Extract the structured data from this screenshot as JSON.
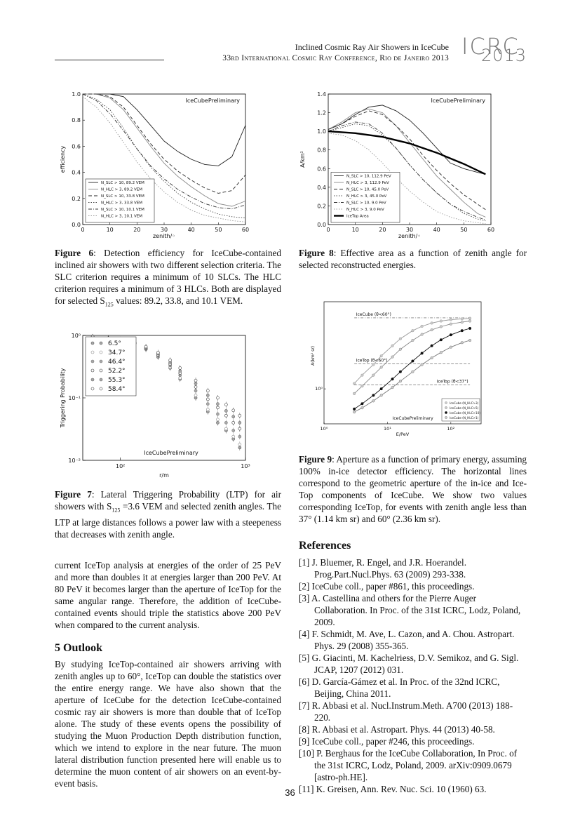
{
  "header": {
    "title": "Inclined Cosmic Ray Air Showers in IceCube",
    "conference": "33rd International Cosmic Ray Conference, Rio de Janeiro 2013",
    "logo_top": "ICRC",
    "logo_bottom": "2013"
  },
  "fig6": {
    "caption_label": "Figure 6",
    "caption": ": Detection efficiency for IceCube-contained inclined air showers with two different selection criteria. The SLC criterion requires a minimum of 10 SLCs. The HLC criterion requires a minimum of 3 HLCs. Both are displayed for selected S",
    "caption_sub": "125",
    "caption_end": " values: 89.2, 33.8, and 10.1 VEM."
  },
  "fig7": {
    "caption_label": "Figure 7",
    "caption": ": Lateral Triggering Probability (LTP) for air showers with S",
    "caption_sub": "125",
    "caption_end": " =3.6 VEM and selected zenith angles. The LTP at large distances follows a power law with a steepeness that decreases with zenith angle."
  },
  "fig8": {
    "caption_label": "Figure 8",
    "caption": ": Effective area as a function of zenith angle for selected reconstructed energies."
  },
  "fig9": {
    "caption_label": "Figure 9",
    "caption": ": Aperture as a function of primary energy, assuming 100% in-ice detector efficiency. The horizontal lines correspond to the geometric aperture of the in-ice and Ice-Top components of IceCube. We show two values corresponding IceTop, for events with zenith angle less than 37° (1.14 km sr) and 60° (2.36 km sr)."
  },
  "body_para": "current IceTop analysis at energies of the order of 25 PeV and more than doubles it at energies larger than 200 PeV. At 80 PeV it becomes larger than the aperture of IceTop for the same angular range. Therefore, the addition of IceCube-contained events should triple the statistics above 200 PeV when compared to the current analysis.",
  "outlook": {
    "heading": "5   Outlook",
    "text": "By studying IceTop-contained air showers arriving with zenith angles up to 60°, IceTop can double the statistics over the entire energy range. We have also shown that the aperture of IceCube for the detection IceCube-contained cosmic ray air showers is more than double that of IceTop alone. The study of these events opens the possibility of studying the Muon Production Depth distribution function, which we intend to explore in the near future. The muon lateral distribution function presented here will enable us to determine the muon content of air showers on an event-by-event basis."
  },
  "references": {
    "heading": "References",
    "items": [
      "[1]  J. Bluemer, R. Engel, and J.R. Hoerandel. Prog.Part.Nucl.Phys. 63 (2009) 293-338.",
      "[2]  IceCube coll., paper #861, this proceedings.",
      "[3]  A. Castellina and others for the Pierre Auger Collaboration. In Proc. of the 31st ICRC, Lodz, Poland, 2009.",
      "[4]  F. Schmidt, M. Ave, L. Cazon, and A. Chou. Astropart. Phys. 29 (2008) 355-365.",
      "[5]  G. Giacinti, M. Kachelriess, D.V. Semikoz, and G. Sigl. JCAP, 1207 (2012) 031.",
      "[6]  D. García-Gámez et al. In Proc. of the 32nd ICRC, Beijing, China 2011.",
      "[7]  R. Abbasi et al. Nucl.Instrum.Meth. A700 (2013) 188-220.",
      "[8]  R. Abbasi et al. Astropart. Phys. 44 (2013) 40-58.",
      "[9]  IceCube coll., paper #246, this proceedings.",
      "[10] P. Berghaus for the IceCube Collaboration, In Proc. of the 31st ICRC, Lodz, Poland, 2009. arXiv:0909.0679 [astro-ph.HE].",
      "[11] K. Greisen, Ann. Rev. Nuc. Sci. 10 (1960) 63."
    ]
  },
  "page_number": "36",
  "chart_data": [
    {
      "type": "line",
      "id": "fig6",
      "xlabel": "zenith/◦",
      "ylabel": "efficiency",
      "xlim": [
        0,
        60
      ],
      "ylim": [
        0,
        1.0
      ],
      "xticks": [
        "0",
        "10",
        "20",
        "30",
        "40",
        "50",
        "60"
      ],
      "yticks": [
        "0.0",
        "0.2",
        "0.4",
        "0.6",
        "0.8",
        "1.0"
      ],
      "annotation": "IceCubePreliminary",
      "legend": "bottom-left",
      "series": [
        {
          "name": "N_SLC > 10, 89.2 VEM",
          "style": "solid",
          "x": [
            0,
            5,
            10,
            15,
            20,
            25,
            30,
            35,
            40,
            45,
            50,
            55,
            60
          ],
          "y": [
            1.0,
            1.0,
            1.0,
            0.98,
            0.88,
            0.76,
            0.64,
            0.56,
            0.5,
            0.46,
            0.45,
            0.52,
            0.76
          ]
        },
        {
          "name": "N_HLC >  3, 89.2 VEM",
          "style": "solid-gray",
          "x": [
            0,
            5,
            10,
            15,
            20,
            25,
            30,
            35,
            40,
            45,
            50,
            55,
            60
          ],
          "y": [
            1.0,
            1.0,
            0.97,
            0.88,
            0.74,
            0.6,
            0.47,
            0.37,
            0.29,
            0.22,
            0.16,
            0.14,
            0.18
          ]
        },
        {
          "name": "N_SLC > 10, 33.8 VEM",
          "style": "dashed",
          "x": [
            0,
            5,
            10,
            15,
            20,
            25,
            30,
            35,
            40,
            45,
            50,
            55,
            60
          ],
          "y": [
            1.0,
            1.0,
            0.98,
            0.9,
            0.76,
            0.62,
            0.5,
            0.41,
            0.34,
            0.28,
            0.24,
            0.26,
            0.38
          ]
        },
        {
          "name": "N_HLC >  3, 33.8 VEM",
          "style": "dotted",
          "x": [
            0,
            5,
            10,
            15,
            20,
            25,
            30,
            35,
            40,
            45,
            50,
            55,
            60
          ],
          "y": [
            1.0,
            0.96,
            0.88,
            0.74,
            0.58,
            0.44,
            0.33,
            0.24,
            0.17,
            0.12,
            0.08,
            0.06,
            0.05
          ]
        },
        {
          "name": "N_SLC > 10, 10.1 VEM",
          "style": "dashdot",
          "x": [
            0,
            5,
            10,
            15,
            20,
            25,
            30,
            35,
            40,
            45,
            50,
            55,
            60
          ],
          "y": [
            1.0,
            0.95,
            0.85,
            0.72,
            0.58,
            0.45,
            0.35,
            0.27,
            0.21,
            0.16,
            0.13,
            0.12,
            0.15
          ]
        },
        {
          "name": "N_HLC >  3, 10.1 VEM",
          "style": "dotted-gray",
          "x": [
            0,
            5,
            10,
            15,
            20,
            25,
            30,
            35,
            40,
            45,
            50,
            55,
            60
          ],
          "y": [
            0.98,
            0.9,
            0.78,
            0.63,
            0.48,
            0.35,
            0.25,
            0.17,
            0.11,
            0.07,
            0.05,
            0.03,
            0.02
          ]
        }
      ]
    },
    {
      "type": "line",
      "id": "fig8",
      "xlabel": "zenith/◦",
      "ylabel": "A/km²",
      "xlim": [
        0,
        60
      ],
      "ylim": [
        0,
        1.4
      ],
      "xticks": [
        "0",
        "10",
        "20",
        "30",
        "40",
        "50",
        "60"
      ],
      "yticks": [
        "0.0",
        "0.2",
        "0.4",
        "0.6",
        "0.8",
        "1.0",
        "1.2",
        "1.4"
      ],
      "annotation": "IceCubePreliminary",
      "legend": "bottom-left",
      "series": [
        {
          "name": "N_SLC > 10, 112.9 PeV",
          "style": "solid",
          "x": [
            0,
            5,
            10,
            15,
            20,
            25,
            30,
            35,
            40,
            45,
            50,
            55,
            58
          ],
          "y": [
            1.02,
            1.08,
            1.18,
            1.26,
            1.28,
            1.22,
            1.12,
            0.98,
            0.82,
            0.66,
            0.6,
            0.56,
            0.54
          ]
        },
        {
          "name": "N_HLC >  3, 112.9 PeV",
          "style": "solid-gray",
          "x": [
            0,
            5,
            10,
            15,
            20,
            25,
            30,
            35,
            40,
            45,
            50,
            55,
            58
          ],
          "y": [
            1.02,
            1.1,
            1.2,
            1.24,
            1.2,
            1.06,
            0.88,
            0.7,
            0.52,
            0.38,
            0.24,
            0.12,
            0.08
          ]
        },
        {
          "name": "N_SLC > 10, 45.0 PeV",
          "style": "dashed",
          "x": [
            0,
            5,
            10,
            15,
            20,
            25,
            30,
            35,
            40,
            45,
            50,
            55,
            58
          ],
          "y": [
            1.02,
            1.08,
            1.16,
            1.22,
            1.18,
            1.06,
            0.92,
            0.74,
            0.58,
            0.44,
            0.32,
            0.22,
            0.16
          ]
        },
        {
          "name": "N_HLC >  3, 45.0 PeV",
          "style": "dotted",
          "x": [
            0,
            5,
            10,
            15,
            20,
            25,
            30,
            35,
            40,
            45,
            50,
            55,
            58
          ],
          "y": [
            1.0,
            1.04,
            1.08,
            1.06,
            0.96,
            0.82,
            0.64,
            0.48,
            0.34,
            0.22,
            0.12,
            0.06,
            0.04
          ]
        },
        {
          "name": "N_SLC > 10, 9.0 PeV",
          "style": "dashdot",
          "x": [
            0,
            5,
            10,
            15,
            20,
            25,
            30,
            35,
            40,
            45,
            50,
            55,
            58
          ],
          "y": [
            1.0,
            1.06,
            1.1,
            1.08,
            0.98,
            0.82,
            0.64,
            0.48,
            0.34,
            0.22,
            0.14,
            0.08,
            0.05
          ]
        },
        {
          "name": "N_HLC >  3, 9.0 PeV",
          "style": "dotted-gray",
          "x": [
            0,
            5,
            10,
            15,
            20,
            25,
            30,
            35,
            40,
            45,
            50,
            55,
            58
          ],
          "y": [
            0.98,
            0.96,
            0.9,
            0.8,
            0.66,
            0.5,
            0.36,
            0.24,
            0.14,
            0.08,
            0.04,
            0.02,
            0.01
          ]
        },
        {
          "name": "IceTop Area",
          "style": "thick",
          "x": [
            0,
            10,
            20,
            30,
            40,
            50,
            58
          ],
          "y": [
            1.0,
            0.98,
            0.94,
            0.87,
            0.77,
            0.65,
            0.54
          ]
        }
      ]
    },
    {
      "type": "scatter",
      "id": "fig7",
      "xlabel": "r/m",
      "ylabel": "Triggering Probability",
      "xlim": [
        50,
        1000
      ],
      "ylim": [
        0.01,
        1
      ],
      "xscale": "log",
      "yscale": "log",
      "xticks": [
        "10²",
        "10³"
      ],
      "yticks": [
        "10⁻²",
        "10⁻¹",
        "10⁰"
      ],
      "annotation": "IceCubePreliminary",
      "legend": "top-left",
      "series": [
        {
          "name": "6.5°",
          "x": [
            60,
            80,
            100,
            130,
            160,
            200,
            250,
            300,
            400,
            500,
            600,
            700,
            800,
            900
          ],
          "y": [
            0.95,
            0.9,
            0.85,
            0.75,
            0.6,
            0.45,
            0.3,
            0.2,
            0.1,
            0.06,
            0.04,
            0.03,
            0.022,
            0.016
          ]
        },
        {
          "name": "34.7°",
          "x": [
            60,
            80,
            100,
            130,
            160,
            200,
            250,
            300,
            400,
            500,
            600,
            700,
            800,
            900
          ],
          "y": [
            0.95,
            0.9,
            0.84,
            0.74,
            0.6,
            0.46,
            0.31,
            0.21,
            0.11,
            0.065,
            0.045,
            0.032,
            0.024,
            0.018
          ]
        },
        {
          "name": "46.4°",
          "x": [
            60,
            80,
            100,
            130,
            160,
            200,
            250,
            300,
            400,
            500,
            600,
            700,
            800,
            900
          ],
          "y": [
            0.95,
            0.9,
            0.84,
            0.74,
            0.61,
            0.47,
            0.33,
            0.23,
            0.13,
            0.08,
            0.055,
            0.04,
            0.03,
            0.024
          ]
        },
        {
          "name": "52.2°",
          "x": [
            60,
            80,
            100,
            130,
            160,
            200,
            250,
            300,
            400,
            500,
            600,
            700,
            800,
            900
          ],
          "y": [
            0.95,
            0.9,
            0.85,
            0.75,
            0.62,
            0.49,
            0.35,
            0.25,
            0.15,
            0.095,
            0.07,
            0.052,
            0.04,
            0.032
          ]
        },
        {
          "name": "55.3°",
          "x": [
            60,
            80,
            100,
            130,
            160,
            200,
            250,
            300,
            400,
            500,
            600,
            700,
            800,
            900
          ],
          "y": [
            0.95,
            0.9,
            0.85,
            0.76,
            0.64,
            0.51,
            0.37,
            0.27,
            0.17,
            0.11,
            0.08,
            0.062,
            0.05,
            0.04
          ]
        },
        {
          "name": "58.4°",
          "x": [
            60,
            80,
            100,
            130,
            160,
            200,
            250,
            300,
            400,
            500,
            600,
            700,
            800,
            900
          ],
          "y": [
            0.95,
            0.9,
            0.86,
            0.77,
            0.66,
            0.53,
            0.4,
            0.3,
            0.19,
            0.13,
            0.1,
            0.078,
            0.063,
            0.052
          ]
        }
      ]
    },
    {
      "type": "line",
      "id": "fig9",
      "xlabel": "E/PeV",
      "ylabel": "A(km² sr)",
      "xlim": [
        1,
        300
      ],
      "ylim": [
        0.3,
        20
      ],
      "xscale": "log",
      "yscale": "log",
      "xticks": [
        "10⁰",
        "10¹",
        "10²"
      ],
      "yticks": [
        "10⁰"
      ],
      "annotation": "IceCubePreliminary",
      "legend": "bottom-right",
      "hlines": [
        {
          "label": "IceCube (θ<60°)",
          "y": 11.5
        },
        {
          "label": "IceTop (θ<60°)",
          "y": 2.36
        },
        {
          "label": "IceTop (θ<37°)",
          "y": 1.14
        }
      ],
      "series": [
        {
          "name": "IceCube (N_HLC>3)",
          "x": [
            3,
            4,
            6,
            8,
            12,
            16,
            25,
            35,
            50,
            70,
            100,
            150,
            200
          ],
          "y": [
            1.2,
            1.6,
            2.3,
            3.1,
            4.4,
            5.6,
            7.4,
            8.6,
            9.6,
            10.3,
            10.8,
            11.1,
            11.3
          ]
        },
        {
          "name": "IceCube (N_HLC>5)",
          "x": [
            3,
            4,
            6,
            8,
            12,
            16,
            25,
            35,
            50,
            70,
            100,
            150,
            200
          ],
          "y": [
            0.85,
            1.1,
            1.6,
            2.1,
            3.0,
            3.9,
            5.3,
            6.5,
            7.6,
            8.5,
            9.3,
            9.9,
            10.3
          ]
        },
        {
          "name": "IceCube (N_HLC>10)",
          "x": [
            3,
            4,
            6,
            8,
            12,
            16,
            25,
            35,
            50,
            70,
            100,
            150,
            200
          ],
          "y": [
            0.5,
            0.6,
            0.8,
            1.0,
            1.4,
            1.8,
            2.6,
            3.4,
            4.4,
            5.4,
            6.4,
            7.4,
            8.0
          ]
        },
        {
          "name": "IceCube (N_HLC>1)",
          "x": [
            3,
            4,
            6,
            8,
            12,
            16,
            25,
            35,
            50,
            70,
            100,
            150,
            200
          ],
          "y": [
            0.45,
            0.52,
            0.66,
            0.8,
            1.05,
            1.3,
            1.8,
            2.3,
            2.9,
            3.5,
            4.2,
            4.9,
            5.3
          ]
        }
      ]
    }
  ]
}
